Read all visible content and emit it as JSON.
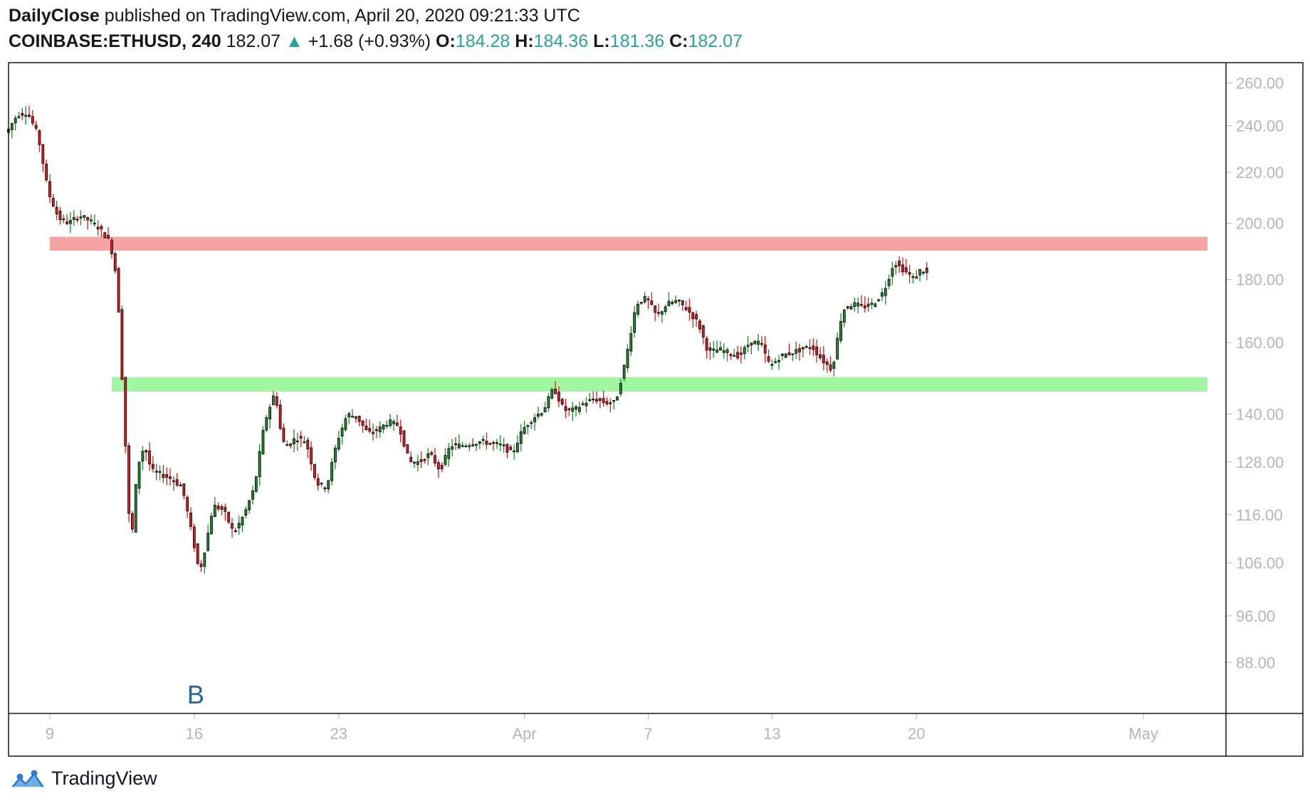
{
  "header": {
    "author": "DailyClose",
    "published_text": "published on TradingView.com, April 20, 2020 09:21:33 UTC",
    "symbol": "COINBASE:ETHUSD, 240",
    "price": "182.07",
    "change_arrow": "▲",
    "change": "+1.68 (+0.93%)",
    "o_label": "O:",
    "o_value": "184.28",
    "h_label": "H:",
    "h_value": "184.36",
    "l_label": "L:",
    "l_value": "181.36",
    "c_label": "C:",
    "c_value": "182.07"
  },
  "footer": {
    "brand": "TradingView",
    "logo_icon": "tradingview-logo-icon"
  },
  "colors": {
    "up": "#1e8c2c",
    "down": "#e01c1c",
    "resistance": "#f8a3a3",
    "support": "#a2f5a2",
    "axis_text": "#b2b5be",
    "accent": "#26a69a",
    "annotation": "#2962a0"
  },
  "chart_data": {
    "type": "candlestick",
    "scale": "log",
    "ylim": [
      80,
      270
    ],
    "y_ticks": [
      "260.00",
      "240.00",
      "220.00",
      "200.00",
      "180.00",
      "160.00",
      "140.00",
      "128.00",
      "116.00",
      "106.00",
      "96.00",
      "88.00"
    ],
    "y_tick_values": [
      260,
      240,
      220,
      200,
      180,
      160,
      140,
      128,
      116,
      106,
      96,
      88
    ],
    "x_ticks": [
      {
        "label": "9",
        "date": "2020-03-09"
      },
      {
        "label": "16",
        "date": "2020-03-16"
      },
      {
        "label": "23",
        "date": "2020-03-23"
      },
      {
        "label": "Apr",
        "date": "2020-04-01"
      },
      {
        "label": "7",
        "date": "2020-04-07"
      },
      {
        "label": "13",
        "date": "2020-04-13"
      },
      {
        "label": "20",
        "date": "2020-04-20"
      },
      {
        "label": "May",
        "date": "2020-05-01"
      }
    ],
    "x_range": [
      "2020-03-07",
      "2020-05-05"
    ],
    "zones": [
      {
        "name": "resistance",
        "start": "2020-03-09",
        "low": 190,
        "high": 195
      },
      {
        "name": "support",
        "start": "2020-03-12",
        "low": 146,
        "high": 150
      }
    ],
    "annotations": [
      {
        "text": "B",
        "date": "2020-03-16"
      }
    ],
    "anchors": [
      [
        "2020-03-07 00:00",
        237
      ],
      [
        "2020-03-07 12:00",
        245
      ],
      [
        "2020-03-08 00:00",
        246
      ],
      [
        "2020-03-08 12:00",
        236
      ],
      [
        "2020-03-09 00:00",
        212
      ],
      [
        "2020-03-09 12:00",
        202
      ],
      [
        "2020-03-10 00:00",
        200
      ],
      [
        "2020-03-10 12:00",
        203
      ],
      [
        "2020-03-11 00:00",
        201
      ],
      [
        "2020-03-11 12:00",
        198
      ],
      [
        "2020-03-12 00:00",
        193
      ],
      [
        "2020-03-12 08:00",
        180
      ],
      [
        "2020-03-12 16:00",
        140
      ],
      [
        "2020-03-13 00:00",
        108
      ],
      [
        "2020-03-13 08:00",
        127
      ],
      [
        "2020-03-13 16:00",
        132
      ],
      [
        "2020-03-14 00:00",
        126
      ],
      [
        "2020-03-14 12:00",
        125
      ],
      [
        "2020-03-15 00:00",
        124
      ],
      [
        "2020-03-15 12:00",
        122
      ],
      [
        "2020-03-16 08:00",
        104
      ],
      [
        "2020-03-16 16:00",
        110
      ],
      [
        "2020-03-17 00:00",
        118
      ],
      [
        "2020-03-17 12:00",
        117
      ],
      [
        "2020-03-18 00:00",
        112
      ],
      [
        "2020-03-18 12:00",
        116
      ],
      [
        "2020-03-19 00:00",
        122
      ],
      [
        "2020-03-19 12:00",
        138
      ],
      [
        "2020-03-20 00:00",
        146
      ],
      [
        "2020-03-20 08:00",
        133
      ],
      [
        "2020-03-20 16:00",
        132
      ],
      [
        "2020-03-21 00:00",
        134
      ],
      [
        "2020-03-21 12:00",
        133
      ],
      [
        "2020-03-22 00:00",
        123
      ],
      [
        "2020-03-22 12:00",
        122
      ],
      [
        "2020-03-23 00:00",
        133
      ],
      [
        "2020-03-23 12:00",
        140
      ],
      [
        "2020-03-24 00:00",
        139
      ],
      [
        "2020-03-24 12:00",
        135
      ],
      [
        "2020-03-25 00:00",
        136
      ],
      [
        "2020-03-25 12:00",
        138
      ],
      [
        "2020-03-26 00:00",
        137
      ],
      [
        "2020-03-26 12:00",
        128
      ],
      [
        "2020-03-27 00:00",
        128
      ],
      [
        "2020-03-27 12:00",
        130
      ],
      [
        "2020-03-28 00:00",
        126
      ],
      [
        "2020-03-28 12:00",
        132
      ],
      [
        "2020-03-29 00:00",
        132
      ],
      [
        "2020-03-30 00:00",
        133
      ],
      [
        "2020-03-31 00:00",
        132
      ],
      [
        "2020-03-31 12:00",
        130
      ],
      [
        "2020-04-01 00:00",
        136
      ],
      [
        "2020-04-01 12:00",
        139
      ],
      [
        "2020-04-02 00:00",
        141
      ],
      [
        "2020-04-02 12:00",
        147
      ],
      [
        "2020-04-03 00:00",
        141
      ],
      [
        "2020-04-03 12:00",
        141
      ],
      [
        "2020-04-04 00:00",
        143
      ],
      [
        "2020-04-04 12:00",
        144
      ],
      [
        "2020-04-05 00:00",
        143
      ],
      [
        "2020-04-05 12:00",
        143
      ],
      [
        "2020-04-06 00:00",
        155
      ],
      [
        "2020-04-06 12:00",
        172
      ],
      [
        "2020-04-07 00:00",
        174
      ],
      [
        "2020-04-07 12:00",
        168
      ],
      [
        "2020-04-08 00:00",
        172
      ],
      [
        "2020-04-08 12:00",
        173
      ],
      [
        "2020-04-09 00:00",
        170
      ],
      [
        "2020-04-09 12:00",
        166
      ],
      [
        "2020-04-10 00:00",
        157
      ],
      [
        "2020-04-10 12:00",
        158
      ],
      [
        "2020-04-11 00:00",
        157
      ],
      [
        "2020-04-11 12:00",
        156
      ],
      [
        "2020-04-12 00:00",
        160
      ],
      [
        "2020-04-12 12:00",
        160
      ],
      [
        "2020-04-13 00:00",
        153
      ],
      [
        "2020-04-13 12:00",
        156
      ],
      [
        "2020-04-14 00:00",
        157
      ],
      [
        "2020-04-14 12:00",
        158
      ],
      [
        "2020-04-15 00:00",
        159
      ],
      [
        "2020-04-15 12:00",
        155
      ],
      [
        "2020-04-16 00:00",
        152
      ],
      [
        "2020-04-16 12:00",
        170
      ],
      [
        "2020-04-17 00:00",
        172
      ],
      [
        "2020-04-17 12:00",
        171
      ],
      [
        "2020-04-18 00:00",
        172
      ],
      [
        "2020-04-18 12:00",
        176
      ],
      [
        "2020-04-19 00:00",
        186
      ],
      [
        "2020-04-19 12:00",
        183
      ],
      [
        "2020-04-20 00:00",
        180
      ],
      [
        "2020-04-20 08:00",
        184
      ],
      [
        "2020-04-20 12:00",
        182.07
      ]
    ]
  }
}
